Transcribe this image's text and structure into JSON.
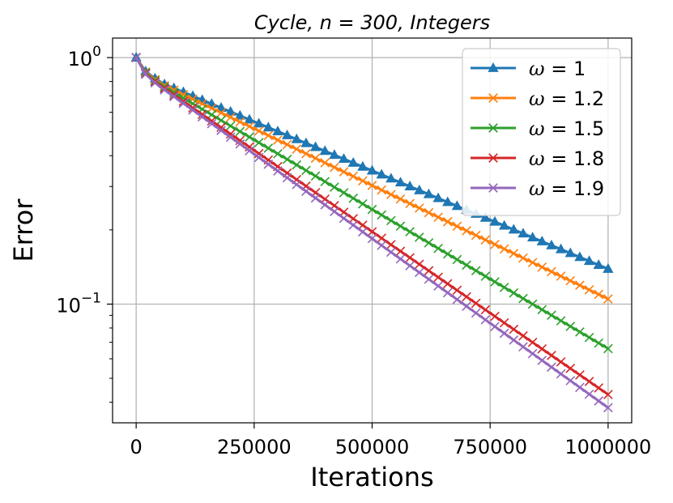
{
  "chart_data": {
    "type": "line",
    "title": "Cycle,    n = 300,    Integers",
    "xlabel": "Iterations",
    "ylabel": "Error",
    "yscale": "log",
    "xlim": [
      -50000,
      1050000
    ],
    "ylim": [
      0.033,
      1.2
    ],
    "xticks": [
      0,
      250000,
      500000,
      750000,
      1000000
    ],
    "xtick_labels": [
      "0",
      "250000",
      "500000",
      "750000",
      "1000000"
    ],
    "yticks": [
      1,
      0.1
    ],
    "ytick_labels": [
      {
        "base": "10",
        "exp": "0"
      },
      {
        "base": "10",
        "exp": "−1"
      }
    ],
    "grid": true,
    "legend_position": "top-right",
    "series": [
      {
        "name": "ω = 1",
        "omega_value": "1",
        "marker": "triangle",
        "color": "#1f77b4",
        "start": 1.0,
        "kink": 0.78,
        "end": 0.139
      },
      {
        "name": "ω = 1.2",
        "omega_value": "1.2",
        "marker": "x",
        "color": "#ff7f0e",
        "start": 1.0,
        "kink": 0.77,
        "end": 0.105
      },
      {
        "name": "ω = 1.5",
        "omega_value": "1.5",
        "marker": "x",
        "color": "#2ca02c",
        "start": 1.0,
        "kink": 0.76,
        "end": 0.066
      },
      {
        "name": "ω = 1.8",
        "omega_value": "1.8",
        "marker": "x",
        "color": "#d62728",
        "start": 1.0,
        "kink": 0.75,
        "end": 0.043
      },
      {
        "name": "ω = 1.9",
        "omega_value": "1.9",
        "marker": "x",
        "color": "#9467bd",
        "start": 1.0,
        "kink": 0.74,
        "end": 0.038
      }
    ],
    "sample_step": 20000,
    "x_max": 1000000
  }
}
